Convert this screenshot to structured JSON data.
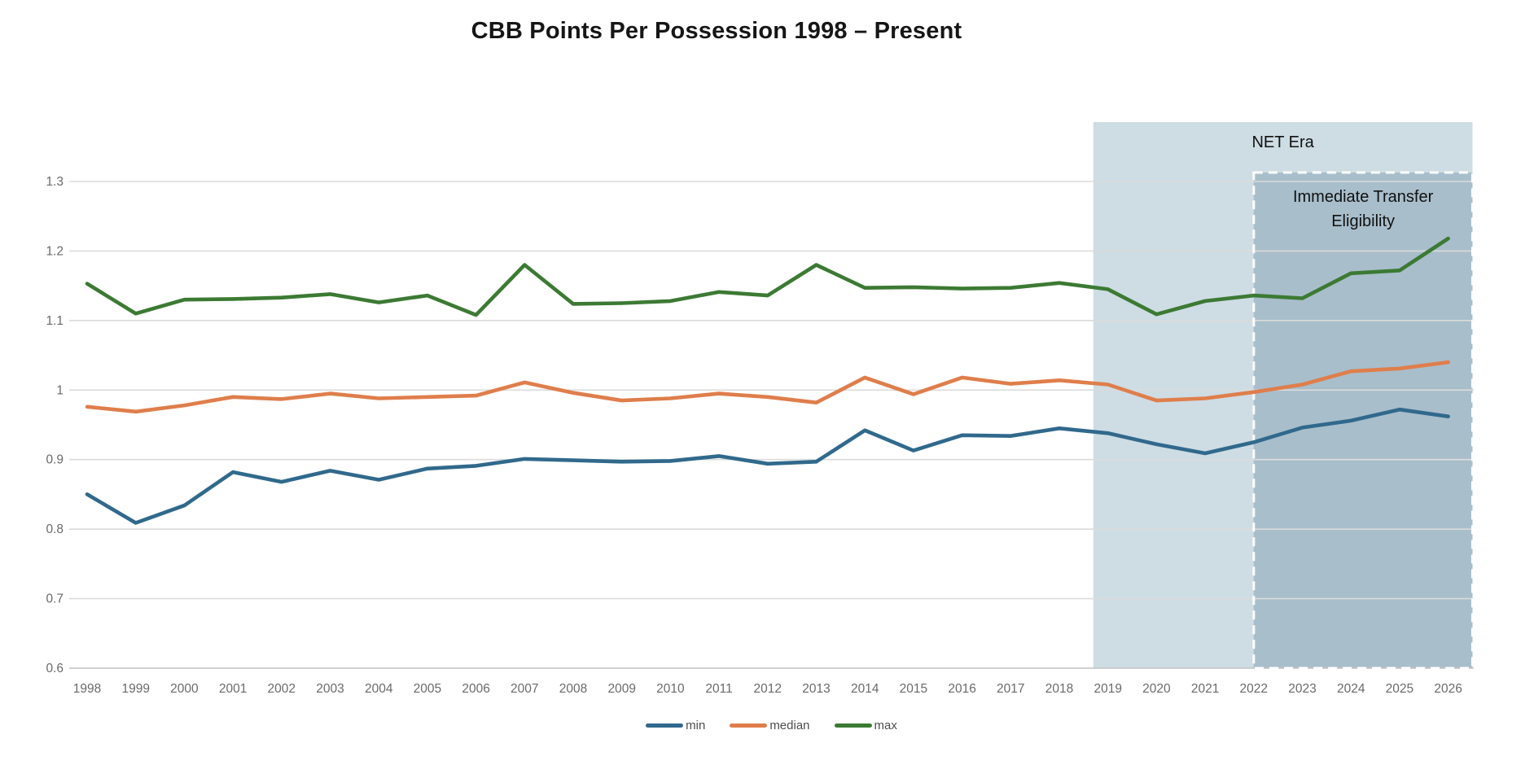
{
  "chart_data": {
    "type": "line",
    "title": "CBB Points Per Possession 1998 – Present",
    "xlabel": "",
    "ylabel": "",
    "grid": true,
    "legend_position": "bottom",
    "ylim": [
      0.6,
      1.3
    ],
    "ytick_labels": [
      "1.3",
      "1.2",
      "1.1",
      "1",
      "0.9",
      "0.8",
      "0.7",
      "0.6"
    ],
    "ytick_values": [
      1.3,
      1.2,
      1.1,
      1.0,
      0.9,
      0.8,
      0.7,
      0.6
    ],
    "categories": [
      1998,
      1999,
      2000,
      2001,
      2002,
      2003,
      2004,
      2005,
      2006,
      2007,
      2008,
      2009,
      2010,
      2011,
      2012,
      2013,
      2014,
      2015,
      2016,
      2017,
      2018,
      2019,
      2020,
      2021,
      2022,
      2023,
      2024,
      2025,
      2026
    ],
    "series": [
      {
        "name": "min",
        "color": "#30698C",
        "values": [
          0.85,
          0.809,
          0.834,
          0.882,
          0.868,
          0.884,
          0.871,
          0.887,
          0.891,
          0.901,
          0.899,
          0.897,
          0.898,
          0.905,
          0.894,
          0.897,
          0.942,
          0.913,
          0.935,
          0.934,
          0.945,
          0.938,
          0.922,
          0.909,
          0.925,
          0.946,
          0.956,
          0.972,
          0.962
        ]
      },
      {
        "name": "median",
        "color": "#DF7E4B",
        "values": [
          0.976,
          0.969,
          0.978,
          0.99,
          0.987,
          0.995,
          0.988,
          0.99,
          0.992,
          1.011,
          0.996,
          0.985,
          0.988,
          0.995,
          0.99,
          0.982,
          1.018,
          0.994,
          1.018,
          1.009,
          1.014,
          1.008,
          0.985,
          0.988,
          0.997,
          1.008,
          1.027,
          1.031,
          1.04
        ]
      },
      {
        "name": "max",
        "color": "#3C7A33",
        "values": [
          1.153,
          1.11,
          1.13,
          1.131,
          1.133,
          1.138,
          1.126,
          1.136,
          1.108,
          1.18,
          1.124,
          1.125,
          1.128,
          1.141,
          1.136,
          1.18,
          1.147,
          1.148,
          1.146,
          1.147,
          1.154,
          1.145,
          1.109,
          1.128,
          1.136,
          1.132,
          1.168,
          1.172,
          1.218
        ]
      }
    ],
    "regions": [
      {
        "id": "net-era",
        "label_lines": [
          "NET Era"
        ],
        "start_year": 2018.7,
        "end_year": 2026.5,
        "fill": "#CEDCE4",
        "border": "none"
      },
      {
        "id": "transfer-eligibility",
        "label_lines": [
          "Immediate Transfer",
          "Eligibility"
        ],
        "start_year": 2022,
        "end_year": 2026.5,
        "fill": "#A8BECB",
        "border": "white-dashed"
      }
    ],
    "annotations_color": "#111111",
    "tick_color": "#6a6a6a",
    "gridline_color": "#DBDBDB",
    "axisline_color": "#C2C2C2"
  }
}
